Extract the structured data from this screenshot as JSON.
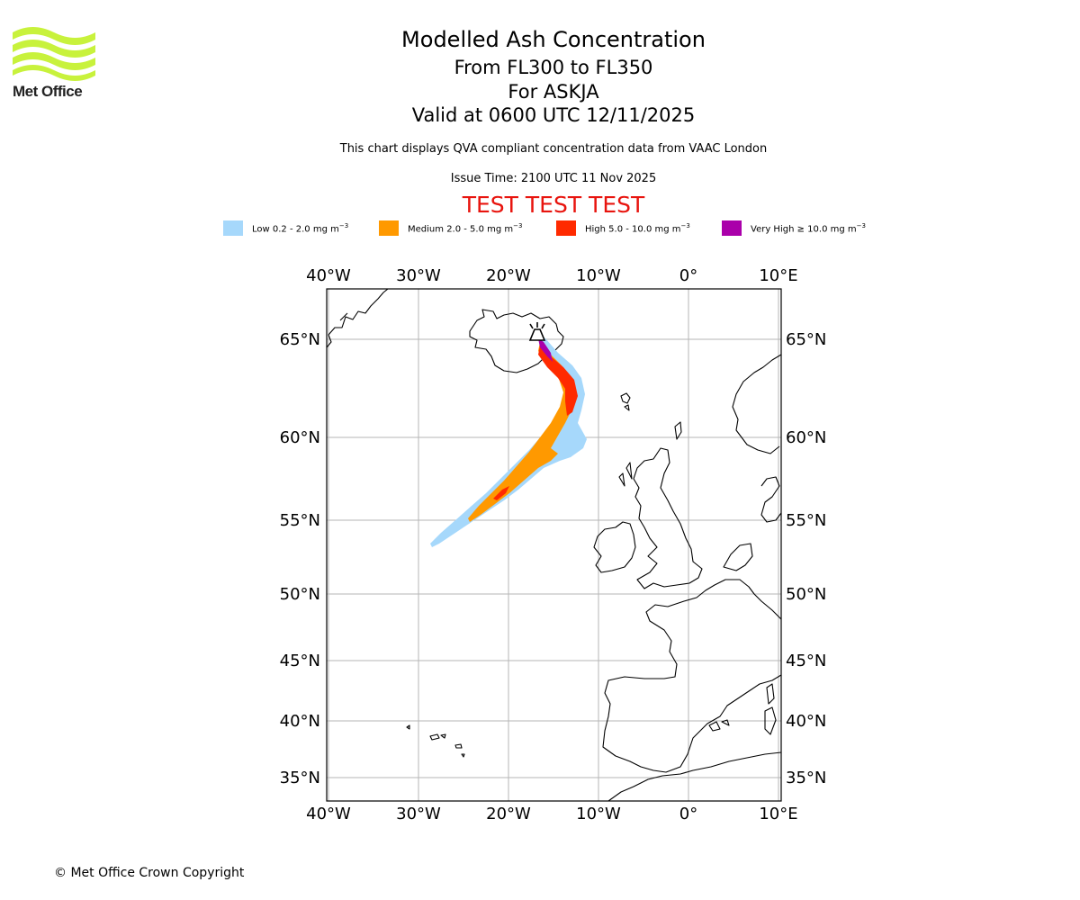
{
  "logo": {
    "name": "Met Office",
    "color": "#c8f23c"
  },
  "header": {
    "title": "Modelled Ash Concentration",
    "levels": "From FL300 to FL350",
    "volcano": "For ASKJA",
    "valid": "Valid at 0600 UTC 12/11/2025",
    "description": "This chart displays QVA compliant concentration data from VAAC London",
    "issue": "Issue Time: 2100 UTC 11 Nov 2025",
    "test_banner": "TEST TEST TEST"
  },
  "legend": [
    {
      "name": "Low",
      "range": "0.2 - 2.0 mg m",
      "unit_exp": "−3",
      "color": "#a6d8fb"
    },
    {
      "name": "Medium",
      "range": "2.0 - 5.0 mg m",
      "unit_exp": "−3",
      "color": "#ff9900"
    },
    {
      "name": "High",
      "range": "5.0 - 10.0 mg m",
      "unit_exp": "−3",
      "color": "#ff2a00"
    },
    {
      "name": "Very High",
      "range": "≥ 10.0 mg m",
      "unit_exp": "−3",
      "color": "#aa00aa"
    }
  ],
  "map": {
    "projection": "Mercator",
    "lon_range": [
      -40,
      10
    ],
    "lat_range": [
      33.5,
      68.2
    ],
    "lon_ticks": [
      "40°W",
      "30°W",
      "20°W",
      "10°W",
      "0°",
      "10°E"
    ],
    "lat_ticks": [
      "65°N",
      "60°N",
      "55°N",
      "50°N",
      "45°N",
      "40°N",
      "35°N"
    ],
    "volcano_icon": "volcano-icon",
    "volcano_location": {
      "lat": 65.03,
      "lon": -16.75
    },
    "grid": true
  },
  "copyright": "© Met Office Crown Copyright"
}
